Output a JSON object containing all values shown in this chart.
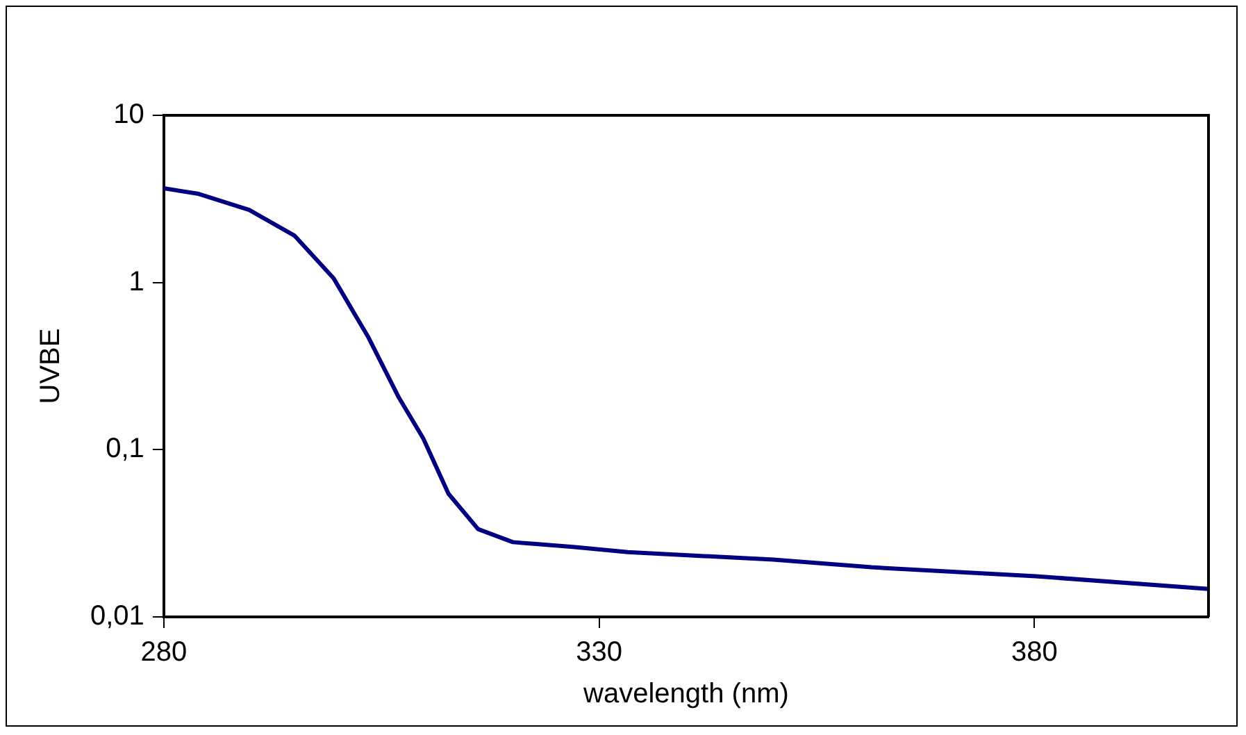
{
  "chart_data": {
    "type": "line",
    "xlabel": "wavelength (nm)",
    "ylabel": "UVBE",
    "log": "y",
    "grid": false,
    "legend": false,
    "marker": "none",
    "line_style": "solid",
    "xlim": [
      280,
      400
    ],
    "xticks": [
      280,
      330,
      380
    ],
    "ylim": [
      0.01,
      10
    ],
    "yticks": [
      {
        "value": 0.01,
        "label": "0,01"
      },
      {
        "value": 0.1,
        "label": "0,1"
      },
      {
        "value": 1,
        "label": "1"
      },
      {
        "value": 10,
        "label": "10"
      }
    ],
    "series": [
      {
        "color": "#000080",
        "x": [
          280,
          284,
          289.8,
          295,
          299.5,
          303.5,
          307,
          309.8,
          312.7,
          316.1,
          320.1,
          327,
          333.3,
          350,
          361.3,
          380.2,
          400
        ],
        "values": [
          3.66,
          3.39,
          2.72,
          1.91,
          1.06,
          0.47,
          0.205,
          0.117,
          0.0545,
          0.0335,
          0.028,
          0.0262,
          0.0244,
          0.022,
          0.0198,
          0.0175,
          0.0147
        ]
      }
    ]
  }
}
